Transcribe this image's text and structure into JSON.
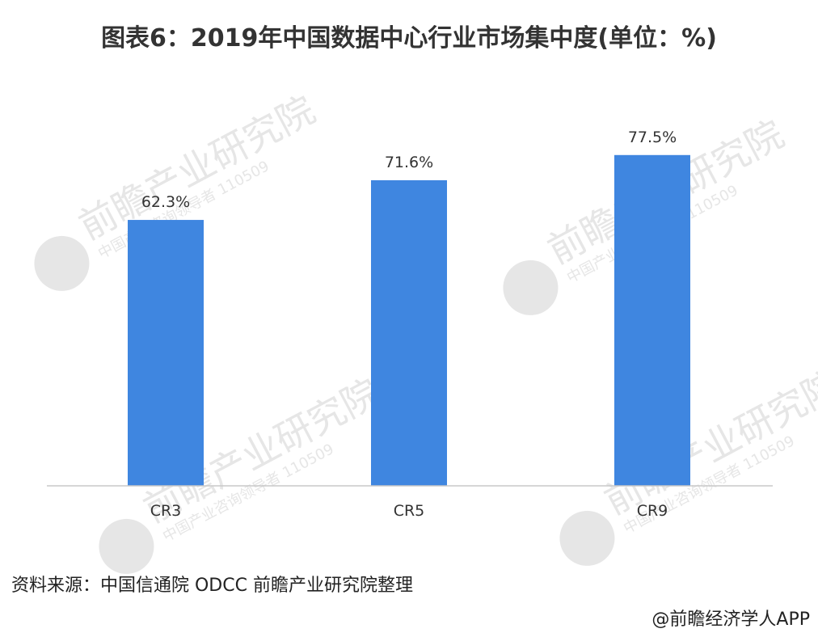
{
  "title": "图表6：2019年中国数据中心行业市场集中度(单位：%)",
  "source": "资料来源：中国信通院 ODCC 前瞻产业研究院整理",
  "credit": "@前瞻经济学人APP",
  "watermark": {
    "main": "前瞻产业研究院",
    "sub": "中国产业咨询领导者 110509"
  },
  "colors": {
    "bar": "#3f86e0",
    "axis": "#c8c8c8",
    "label": "#333333",
    "watermark": "#e6e6e6"
  },
  "chart_data": {
    "type": "bar",
    "categories": [
      "CR3",
      "CR5",
      "CR9"
    ],
    "values": [
      62.3,
      71.6,
      77.5
    ],
    "data_labels": [
      "62.3%",
      "71.6%",
      "77.5%"
    ],
    "ylim": [
      0,
      100
    ],
    "grid": false,
    "legend": "none"
  }
}
